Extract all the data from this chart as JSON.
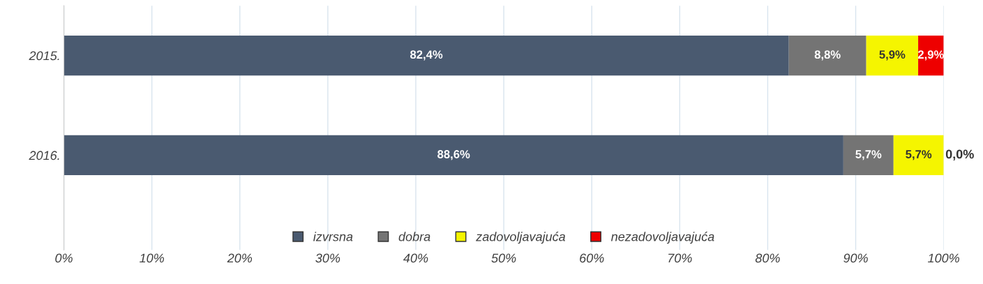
{
  "chart_data": {
    "type": "bar",
    "orientation": "horizontal",
    "stacked": true,
    "categories": [
      "2015.",
      "2016."
    ],
    "series": [
      {
        "name": "izvrsna",
        "color": "#4a5a70",
        "values": [
          82.4,
          88.6
        ],
        "value_labels": [
          "82,4%",
          "88,6%"
        ]
      },
      {
        "name": "dobra",
        "color": "#747474",
        "values": [
          8.8,
          5.7
        ],
        "value_labels": [
          "8,8%",
          "5,7%"
        ]
      },
      {
        "name": "zadovoljavajuća",
        "color": "#f5f500",
        "values": [
          5.9,
          5.7
        ],
        "value_labels": [
          "5,9%",
          "5,7%"
        ]
      },
      {
        "name": "nezadovoljavajuća",
        "color": "#ee0000",
        "values": [
          2.9,
          0.0
        ],
        "value_labels": [
          "2,9%",
          "0,0%"
        ]
      }
    ],
    "xlim": [
      0,
      100
    ],
    "xticks": [
      {
        "value": 0,
        "label": "0%"
      },
      {
        "value": 10,
        "label": "10%"
      },
      {
        "value": 20,
        "label": "20%"
      },
      {
        "value": 30,
        "label": "30%"
      },
      {
        "value": 40,
        "label": "40%"
      },
      {
        "value": 50,
        "label": "50%"
      },
      {
        "value": 60,
        "label": "60%"
      },
      {
        "value": 70,
        "label": "70%"
      },
      {
        "value": 80,
        "label": "80%"
      },
      {
        "value": 90,
        "label": "90%"
      },
      {
        "value": 100,
        "label": "100%"
      }
    ],
    "grid": "x",
    "legend": "bottom"
  }
}
